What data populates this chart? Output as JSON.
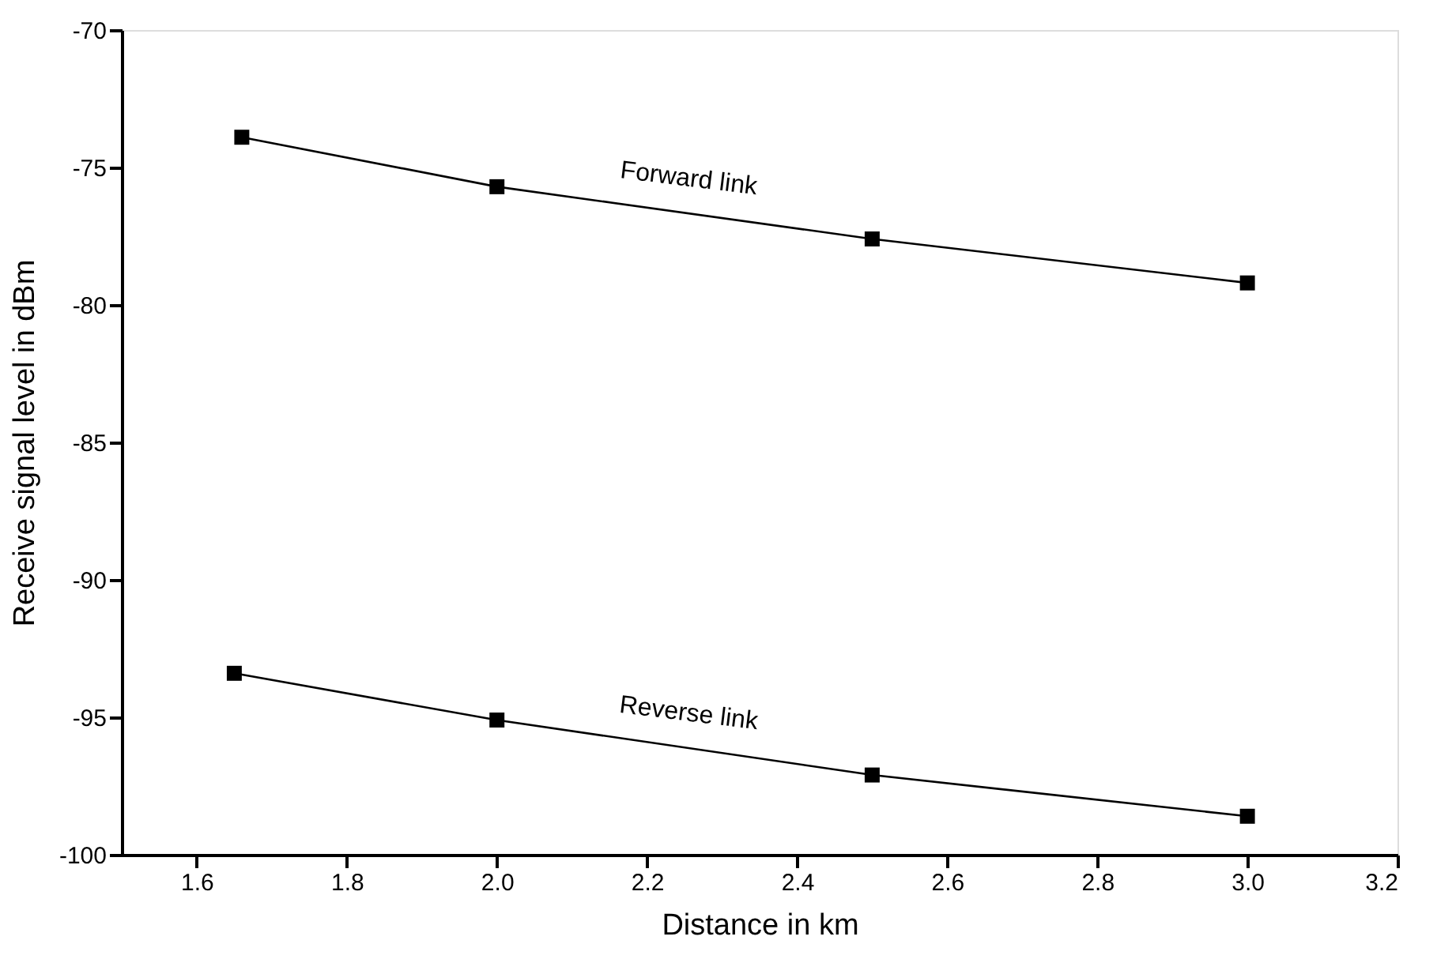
{
  "chart_data": {
    "type": "line",
    "xlabel": "Distance in km",
    "ylabel": "Receive signal level in dBm",
    "xlim": [
      1.5,
      3.2
    ],
    "xticks": [
      1.6,
      {
        "value": 1.8,
        "label": "1.8"
      },
      {
        "value": 2.0,
        "label": "2.0"
      },
      2.2,
      2.4,
      2.6,
      2.8,
      {
        "value": 3.0,
        "label": "3.0"
      },
      3.2
    ],
    "ylim": [
      -100,
      -70
    ],
    "yticks": [
      -100,
      -95,
      -90,
      -85,
      -80,
      -75,
      -70
    ],
    "grid": false,
    "marker": "square",
    "line_style": "solid",
    "series": [
      {
        "name": "Forward link",
        "color": "#000000",
        "x": [
          1.66,
          2.0,
          2.5,
          3.0
        ],
        "values": [
          -73.9,
          -75.7,
          -77.6,
          -79.2
        ]
      },
      {
        "name": "Reverse link",
        "color": "#000000",
        "x": [
          1.65,
          2.0,
          2.5,
          3.0
        ],
        "values": [
          -93.4,
          -95.1,
          -97.1,
          -98.6
        ]
      }
    ]
  }
}
